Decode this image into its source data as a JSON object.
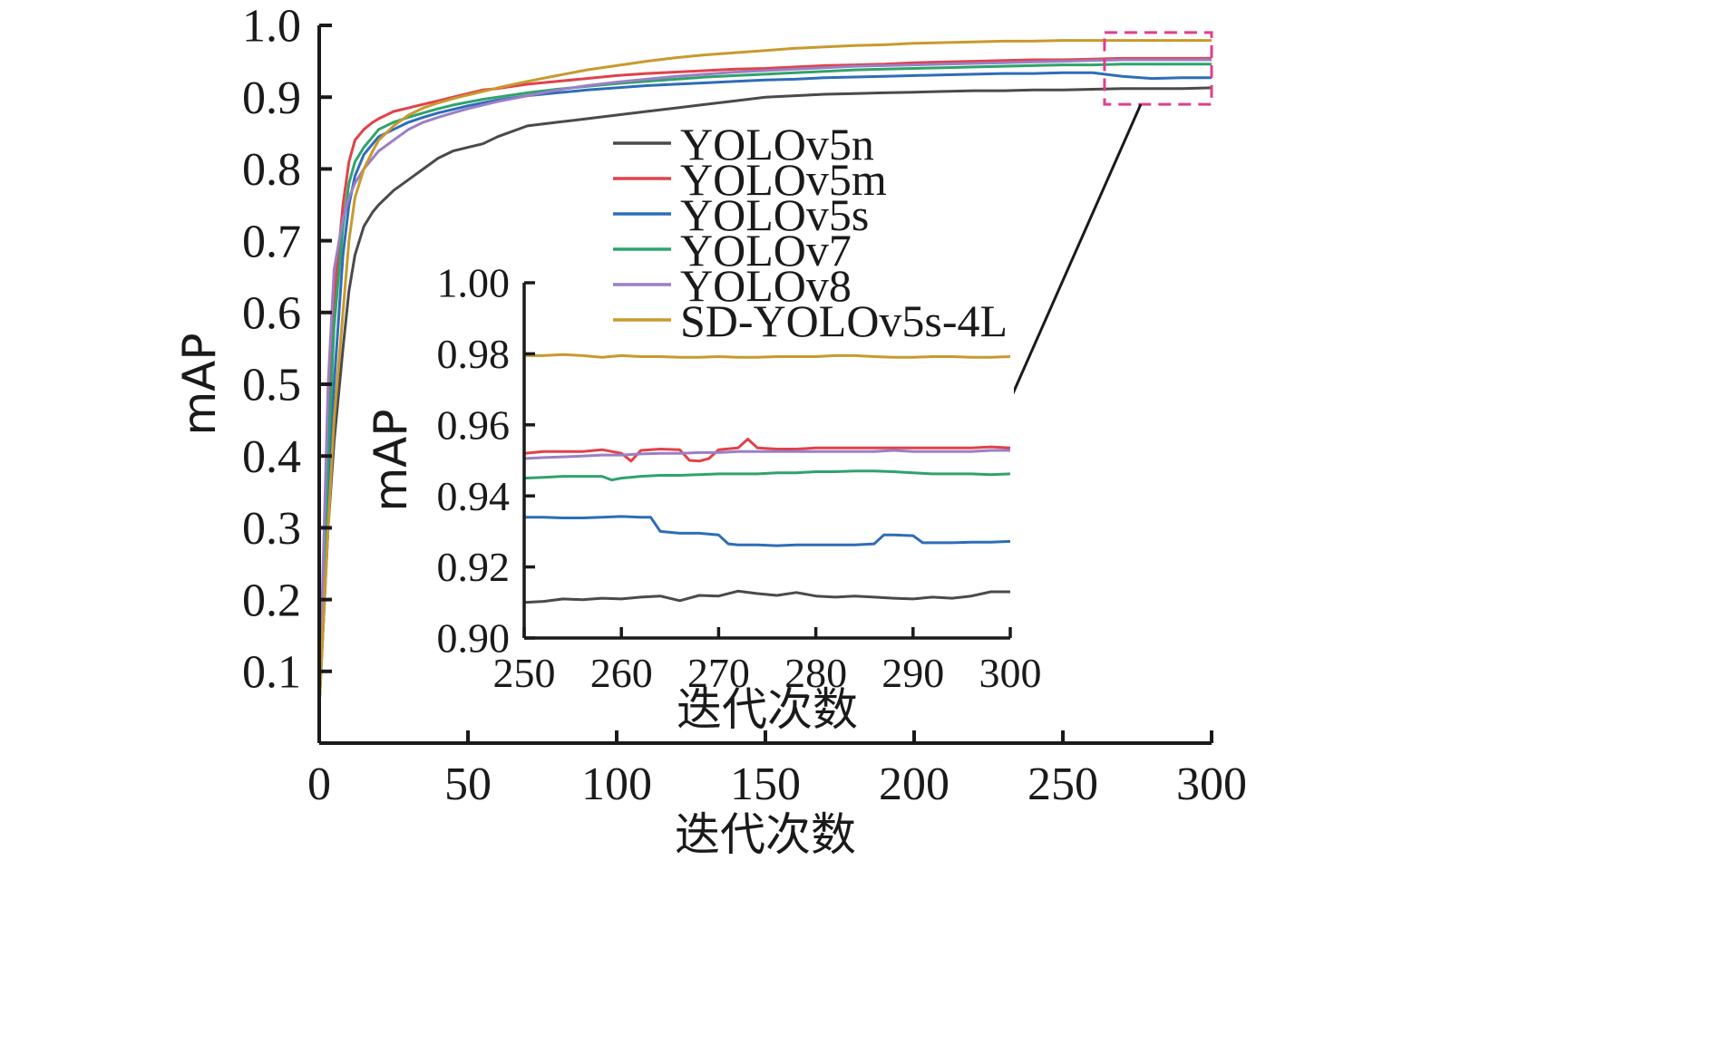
{
  "chart_data": [
    {
      "type": "line",
      "role": "main",
      "xlabel": "迭代次数",
      "ylabel": "mAP",
      "xlim": [
        0,
        300
      ],
      "ylim": [
        0,
        1.0
      ],
      "xticks": [
        "0",
        "50",
        "100",
        "150",
        "200",
        "250",
        "300"
      ],
      "yticks": [
        "0.1",
        "0.2",
        "0.3",
        "0.4",
        "0.5",
        "0.6",
        "0.7",
        "0.8",
        "0.9",
        "1.0"
      ],
      "legend": {
        "placement": "center-right"
      },
      "grid": false,
      "zoom_box": {
        "x": [
          264,
          300
        ],
        "y": [
          0.89,
          0.99
        ],
        "color": "#e23d8c"
      },
      "series": [
        {
          "name": "YOLOv5n",
          "color": "#4a4a4a",
          "x": [
            0,
            3,
            5,
            8,
            10,
            12,
            15,
            18,
            20,
            25,
            30,
            35,
            40,
            45,
            50,
            55,
            60,
            70,
            80,
            90,
            100,
            110,
            120,
            130,
            140,
            150,
            160,
            170,
            180,
            190,
            200,
            210,
            220,
            230,
            240,
            250,
            260,
            270,
            280,
            290,
            300
          ],
          "y": [
            0.05,
            0.3,
            0.42,
            0.55,
            0.63,
            0.68,
            0.72,
            0.74,
            0.75,
            0.77,
            0.785,
            0.8,
            0.815,
            0.825,
            0.83,
            0.835,
            0.845,
            0.86,
            0.865,
            0.87,
            0.875,
            0.88,
            0.885,
            0.89,
            0.895,
            0.9,
            0.902,
            0.904,
            0.905,
            0.906,
            0.907,
            0.908,
            0.909,
            0.909,
            0.91,
            0.91,
            0.911,
            0.912,
            0.912,
            0.912,
            0.913
          ]
        },
        {
          "name": "YOLOv5m",
          "color": "#e0424b",
          "x": [
            0,
            3,
            5,
            8,
            10,
            12,
            15,
            18,
            20,
            25,
            30,
            35,
            40,
            45,
            50,
            55,
            60,
            70,
            80,
            90,
            100,
            110,
            120,
            130,
            140,
            150,
            160,
            170,
            180,
            190,
            200,
            210,
            220,
            230,
            240,
            250,
            260,
            270,
            280,
            290,
            300
          ],
          "y": [
            0.05,
            0.45,
            0.62,
            0.75,
            0.81,
            0.84,
            0.855,
            0.865,
            0.87,
            0.88,
            0.885,
            0.89,
            0.895,
            0.9,
            0.905,
            0.91,
            0.912,
            0.918,
            0.922,
            0.926,
            0.93,
            0.933,
            0.935,
            0.937,
            0.939,
            0.94,
            0.942,
            0.944,
            0.945,
            0.946,
            0.948,
            0.949,
            0.95,
            0.951,
            0.952,
            0.952,
            0.953,
            0.954,
            0.954,
            0.954,
            0.954
          ]
        },
        {
          "name": "YOLOv5s",
          "color": "#2e6db8",
          "x": [
            0,
            3,
            5,
            8,
            10,
            12,
            15,
            18,
            20,
            25,
            30,
            35,
            40,
            45,
            50,
            55,
            60,
            70,
            80,
            90,
            100,
            110,
            120,
            130,
            140,
            150,
            160,
            170,
            180,
            190,
            200,
            210,
            220,
            230,
            240,
            250,
            260,
            270,
            280,
            290,
            300
          ],
          "y": [
            0.05,
            0.35,
            0.5,
            0.68,
            0.75,
            0.79,
            0.82,
            0.835,
            0.845,
            0.855,
            0.865,
            0.872,
            0.878,
            0.883,
            0.888,
            0.892,
            0.896,
            0.902,
            0.906,
            0.91,
            0.913,
            0.916,
            0.918,
            0.92,
            0.922,
            0.924,
            0.925,
            0.927,
            0.928,
            0.929,
            0.93,
            0.931,
            0.932,
            0.933,
            0.933,
            0.934,
            0.934,
            0.929,
            0.926,
            0.927,
            0.927
          ]
        },
        {
          "name": "YOLOv7",
          "color": "#2fa36b",
          "x": [
            0,
            3,
            5,
            8,
            10,
            12,
            15,
            18,
            20,
            25,
            30,
            35,
            40,
            45,
            50,
            55,
            60,
            70,
            80,
            90,
            100,
            110,
            120,
            130,
            140,
            150,
            160,
            170,
            180,
            190,
            200,
            210,
            220,
            230,
            240,
            250,
            260,
            270,
            280,
            290,
            300
          ],
          "y": [
            0.05,
            0.4,
            0.58,
            0.72,
            0.78,
            0.81,
            0.83,
            0.845,
            0.855,
            0.865,
            0.872,
            0.878,
            0.884,
            0.889,
            0.893,
            0.897,
            0.9,
            0.906,
            0.911,
            0.915,
            0.919,
            0.922,
            0.925,
            0.928,
            0.93,
            0.932,
            0.934,
            0.936,
            0.938,
            0.939,
            0.94,
            0.941,
            0.942,
            0.943,
            0.944,
            0.945,
            0.945,
            0.946,
            0.946,
            0.946,
            0.946
          ]
        },
        {
          "name": "YOLOv8",
          "color": "#9b7fc4",
          "x": [
            0,
            3,
            5,
            8,
            10,
            12,
            15,
            18,
            20,
            25,
            30,
            35,
            40,
            45,
            50,
            55,
            60,
            70,
            80,
            90,
            100,
            110,
            120,
            130,
            140,
            150,
            160,
            170,
            180,
            190,
            200,
            210,
            220,
            230,
            240,
            250,
            260,
            270,
            280,
            290,
            300
          ],
          "y": [
            0.05,
            0.5,
            0.66,
            0.73,
            0.76,
            0.78,
            0.8,
            0.815,
            0.825,
            0.84,
            0.855,
            0.865,
            0.872,
            0.878,
            0.884,
            0.889,
            0.894,
            0.902,
            0.91,
            0.916,
            0.921,
            0.925,
            0.929,
            0.932,
            0.935,
            0.937,
            0.939,
            0.941,
            0.943,
            0.944,
            0.945,
            0.946,
            0.947,
            0.948,
            0.949,
            0.95,
            0.951,
            0.952,
            0.952,
            0.952,
            0.952
          ]
        },
        {
          "name": "SD-YOLOv5s-4L",
          "color": "#c89a2e",
          "x": [
            0,
            3,
            5,
            8,
            10,
            12,
            15,
            18,
            20,
            25,
            30,
            35,
            40,
            45,
            50,
            55,
            60,
            70,
            80,
            90,
            100,
            110,
            120,
            130,
            140,
            150,
            160,
            170,
            180,
            190,
            200,
            210,
            220,
            230,
            240,
            250,
            260,
            270,
            280,
            290,
            300
          ],
          "y": [
            0.05,
            0.3,
            0.45,
            0.6,
            0.7,
            0.76,
            0.8,
            0.825,
            0.84,
            0.86,
            0.875,
            0.885,
            0.892,
            0.898,
            0.903,
            0.908,
            0.913,
            0.922,
            0.93,
            0.938,
            0.944,
            0.95,
            0.955,
            0.959,
            0.962,
            0.965,
            0.968,
            0.97,
            0.972,
            0.973,
            0.975,
            0.976,
            0.977,
            0.978,
            0.978,
            0.979,
            0.979,
            0.979,
            0.979,
            0.979,
            0.979
          ]
        }
      ]
    },
    {
      "type": "line",
      "role": "inset",
      "xlabel": "迭代次数",
      "ylabel": "mAP",
      "xlim": [
        250,
        300
      ],
      "ylim": [
        0.9,
        1.0
      ],
      "xticks": [
        "250",
        "260",
        "270",
        "280",
        "290",
        "300"
      ],
      "yticks": [
        "0.90",
        "0.92",
        "0.94",
        "0.96",
        "0.98",
        "1.00"
      ],
      "grid": false,
      "series": [
        {
          "name": "YOLOv5n",
          "color": "#4a4a4a",
          "x": [
            250,
            252,
            254,
            256,
            258,
            260,
            262,
            264,
            266,
            268,
            270,
            272,
            274,
            276,
            278,
            280,
            282,
            284,
            286,
            288,
            290,
            292,
            294,
            296,
            298,
            300
          ],
          "y": [
            0.91,
            0.9103,
            0.911,
            0.9108,
            0.9112,
            0.911,
            0.9115,
            0.9118,
            0.9105,
            0.912,
            0.9118,
            0.9132,
            0.9125,
            0.912,
            0.9128,
            0.9118,
            0.9115,
            0.9118,
            0.9115,
            0.9112,
            0.911,
            0.9115,
            0.9112,
            0.9118,
            0.913,
            0.913
          ]
        },
        {
          "name": "YOLOv5m",
          "color": "#e0424b",
          "x": [
            250,
            252,
            254,
            256,
            258,
            260,
            261,
            262,
            264,
            266,
            267,
            268,
            269,
            270,
            272,
            273,
            274,
            276,
            278,
            280,
            282,
            284,
            286,
            288,
            290,
            292,
            294,
            296,
            298,
            300
          ],
          "y": [
            0.952,
            0.9525,
            0.9525,
            0.9525,
            0.953,
            0.952,
            0.9498,
            0.9528,
            0.9532,
            0.953,
            0.95,
            0.9498,
            0.9505,
            0.953,
            0.9535,
            0.956,
            0.9535,
            0.9532,
            0.9532,
            0.9535,
            0.9535,
            0.9535,
            0.9535,
            0.9535,
            0.9535,
            0.9535,
            0.9535,
            0.9535,
            0.9538,
            0.9535
          ]
        },
        {
          "name": "YOLOv5s",
          "color": "#2e6db8",
          "x": [
            250,
            252,
            254,
            256,
            258,
            260,
            262,
            263,
            264,
            266,
            268,
            270,
            271,
            272,
            274,
            276,
            278,
            280,
            282,
            284,
            286,
            287,
            288,
            290,
            291,
            292,
            294,
            296,
            298,
            300
          ],
          "y": [
            0.934,
            0.934,
            0.9338,
            0.9338,
            0.934,
            0.9342,
            0.934,
            0.934,
            0.93,
            0.9295,
            0.9295,
            0.929,
            0.9265,
            0.9262,
            0.9262,
            0.926,
            0.9262,
            0.9262,
            0.9262,
            0.9262,
            0.9265,
            0.929,
            0.929,
            0.9288,
            0.9268,
            0.9268,
            0.9268,
            0.927,
            0.927,
            0.9272
          ]
        },
        {
          "name": "YOLOv7",
          "color": "#2fa36b",
          "x": [
            250,
            252,
            254,
            256,
            258,
            259,
            260,
            262,
            264,
            266,
            268,
            270,
            272,
            274,
            276,
            278,
            280,
            282,
            284,
            286,
            288,
            290,
            292,
            294,
            296,
            298,
            300
          ],
          "y": [
            0.945,
            0.9452,
            0.9455,
            0.9455,
            0.9455,
            0.9445,
            0.945,
            0.9455,
            0.9458,
            0.9458,
            0.946,
            0.9462,
            0.9462,
            0.9462,
            0.9465,
            0.9465,
            0.9468,
            0.9468,
            0.947,
            0.947,
            0.9468,
            0.9465,
            0.9462,
            0.9462,
            0.9462,
            0.946,
            0.9462
          ]
        },
        {
          "name": "YOLOv8",
          "color": "#9b7fc4",
          "x": [
            250,
            252,
            254,
            256,
            258,
            260,
            262,
            264,
            266,
            268,
            270,
            272,
            274,
            276,
            278,
            280,
            282,
            284,
            286,
            288,
            290,
            292,
            294,
            296,
            298,
            300
          ],
          "y": [
            0.9505,
            0.9508,
            0.951,
            0.9512,
            0.9515,
            0.9515,
            0.9518,
            0.952,
            0.952,
            0.9522,
            0.9522,
            0.9525,
            0.9525,
            0.9525,
            0.9525,
            0.9525,
            0.9525,
            0.9525,
            0.9525,
            0.9528,
            0.9525,
            0.9525,
            0.9525,
            0.9525,
            0.9528,
            0.9528
          ]
        },
        {
          "name": "SD-YOLOv5s-4L",
          "color": "#c89a2e",
          "x": [
            250,
            252,
            254,
            256,
            258,
            260,
            262,
            264,
            266,
            268,
            270,
            272,
            274,
            276,
            278,
            280,
            282,
            284,
            286,
            288,
            290,
            292,
            294,
            296,
            298,
            300
          ],
          "y": [
            0.9795,
            0.9795,
            0.9798,
            0.9795,
            0.979,
            0.9795,
            0.9792,
            0.9792,
            0.979,
            0.979,
            0.9792,
            0.979,
            0.979,
            0.9792,
            0.9792,
            0.9792,
            0.9795,
            0.9795,
            0.9792,
            0.979,
            0.979,
            0.9792,
            0.9792,
            0.979,
            0.979,
            0.9792
          ]
        }
      ]
    }
  ]
}
